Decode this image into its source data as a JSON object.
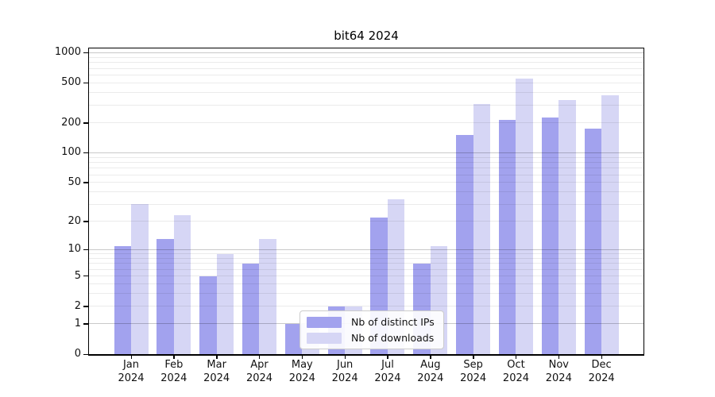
{
  "chart_data": {
    "type": "bar",
    "title": "bit64 2024",
    "scale": "log1p",
    "grid": true,
    "categories": [
      "Jan",
      "Feb",
      "Mar",
      "Apr",
      "May",
      "Jun",
      "Jul",
      "Aug",
      "Sep",
      "Oct",
      "Nov",
      "Dec"
    ],
    "category_year": "2024",
    "series": [
      {
        "name": "Nb of distinct IPs",
        "color": "#a2a2ee",
        "values": [
          11,
          13,
          5,
          7,
          1,
          2,
          22,
          7,
          150,
          215,
          225,
          175
        ]
      },
      {
        "name": "Nb of downloads",
        "color": "#d6d6f5",
        "values": [
          30,
          23,
          9,
          13,
          1,
          2,
          34,
          11,
          310,
          550,
          335,
          375
        ]
      }
    ],
    "y_ticks": [
      0,
      1,
      2,
      5,
      10,
      20,
      50,
      100,
      200,
      500,
      1000
    ],
    "ylim": [
      0,
      1125
    ],
    "legend_position": "lower center"
  }
}
